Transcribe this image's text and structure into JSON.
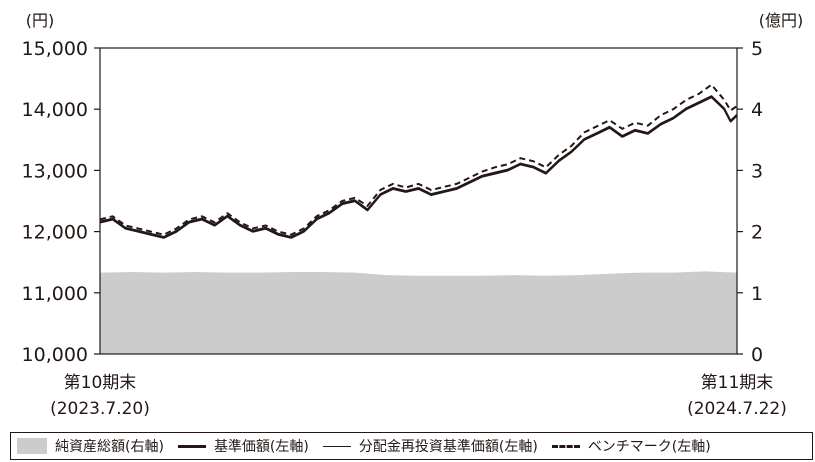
{
  "chart_data": {
    "type": "line",
    "left_axis_unit": "(円)",
    "right_axis_unit": "(億円)",
    "y_left": {
      "min": 10000,
      "max": 15000,
      "ticks": [
        "10,000",
        "11,000",
        "12,000",
        "13,000",
        "14,000",
        "15,000"
      ]
    },
    "y_right": {
      "min": 0,
      "max": 5,
      "ticks": [
        "0",
        "1",
        "2",
        "3",
        "4",
        "5"
      ]
    },
    "x_start": {
      "label": "第10期末",
      "date": "(2023.7.20)"
    },
    "x_end": {
      "label": "第11期末",
      "date": "(2024.7.22)"
    },
    "grid": false,
    "legend_position": "bottom",
    "series": [
      {
        "name": "純資産総額(右軸)",
        "kind": "area",
        "axis": "right",
        "color": "#cccccc",
        "x": [
          0,
          0.05,
          0.1,
          0.15,
          0.2,
          0.25,
          0.3,
          0.35,
          0.4,
          0.45,
          0.5,
          0.55,
          0.6,
          0.65,
          0.7,
          0.75,
          0.8,
          0.85,
          0.9,
          0.95,
          1
        ],
        "values": [
          1.33,
          1.34,
          1.33,
          1.34,
          1.33,
          1.33,
          1.34,
          1.34,
          1.33,
          1.29,
          1.28,
          1.28,
          1.28,
          1.29,
          1.28,
          1.29,
          1.31,
          1.33,
          1.33,
          1.35,
          1.33
        ]
      },
      {
        "name": "基準価額(左軸)",
        "kind": "line",
        "style": "solid-thick",
        "axis": "left",
        "color": "#231815",
        "x": [
          0,
          0.02,
          0.04,
          0.06,
          0.08,
          0.1,
          0.12,
          0.14,
          0.16,
          0.18,
          0.2,
          0.22,
          0.24,
          0.26,
          0.28,
          0.3,
          0.32,
          0.34,
          0.36,
          0.38,
          0.4,
          0.42,
          0.44,
          0.46,
          0.48,
          0.5,
          0.52,
          0.54,
          0.56,
          0.58,
          0.6,
          0.62,
          0.64,
          0.66,
          0.68,
          0.7,
          0.72,
          0.74,
          0.76,
          0.78,
          0.8,
          0.82,
          0.84,
          0.86,
          0.88,
          0.9,
          0.92,
          0.94,
          0.96,
          0.98,
          0.99,
          1
        ],
        "values": [
          12150,
          12200,
          12050,
          12000,
          11950,
          11900,
          12000,
          12150,
          12200,
          12100,
          12250,
          12100,
          12000,
          12050,
          11950,
          11900,
          12000,
          12200,
          12300,
          12450,
          12500,
          12350,
          12600,
          12700,
          12650,
          12700,
          12600,
          12650,
          12700,
          12800,
          12900,
          12950,
          13000,
          13100,
          13050,
          12950,
          13150,
          13300,
          13500,
          13600,
          13700,
          13550,
          13650,
          13600,
          13750,
          13850,
          14000,
          14100,
          14200,
          14000,
          13800,
          13900
        ]
      },
      {
        "name": "分配金再投資基準価額(左軸)",
        "kind": "line",
        "style": "solid-thin",
        "axis": "left",
        "color": "#231815",
        "x": [
          0,
          0.02,
          0.04,
          0.06,
          0.08,
          0.1,
          0.12,
          0.14,
          0.16,
          0.18,
          0.2,
          0.22,
          0.24,
          0.26,
          0.28,
          0.3,
          0.32,
          0.34,
          0.36,
          0.38,
          0.4,
          0.42,
          0.44,
          0.46,
          0.48,
          0.5,
          0.52,
          0.54,
          0.56,
          0.58,
          0.6,
          0.62,
          0.64,
          0.66,
          0.68,
          0.7,
          0.72,
          0.74,
          0.76,
          0.78,
          0.8,
          0.82,
          0.84,
          0.86,
          0.88,
          0.9,
          0.92,
          0.94,
          0.96,
          0.98,
          0.99,
          1
        ],
        "values": [
          12170,
          12220,
          12070,
          12020,
          11970,
          11920,
          12020,
          12170,
          12220,
          12120,
          12270,
          12120,
          12020,
          12070,
          11970,
          11920,
          12020,
          12220,
          12320,
          12470,
          12520,
          12370,
          12620,
          12720,
          12670,
          12720,
          12620,
          12670,
          12720,
          12820,
          12920,
          12970,
          13020,
          13120,
          13070,
          12970,
          13170,
          13320,
          13520,
          13620,
          13720,
          13570,
          13670,
          13620,
          13770,
          13870,
          14020,
          14120,
          14220,
          14020,
          13820,
          13920
        ]
      },
      {
        "name": "ベンチマーク(左軸)",
        "kind": "line",
        "style": "dashed",
        "axis": "left",
        "color": "#231815",
        "x": [
          0,
          0.02,
          0.04,
          0.06,
          0.08,
          0.1,
          0.12,
          0.14,
          0.16,
          0.18,
          0.2,
          0.22,
          0.24,
          0.26,
          0.28,
          0.3,
          0.32,
          0.34,
          0.36,
          0.38,
          0.4,
          0.42,
          0.44,
          0.46,
          0.48,
          0.5,
          0.52,
          0.54,
          0.56,
          0.58,
          0.6,
          0.62,
          0.64,
          0.66,
          0.68,
          0.7,
          0.72,
          0.74,
          0.76,
          0.78,
          0.8,
          0.82,
          0.84,
          0.86,
          0.88,
          0.9,
          0.92,
          0.94,
          0.96,
          0.98,
          0.99,
          1
        ],
        "values": [
          12200,
          12250,
          12100,
          12050,
          12000,
          11950,
          12050,
          12200,
          12250,
          12150,
          12300,
          12150,
          12050,
          12100,
          12000,
          11950,
          12050,
          12250,
          12350,
          12500,
          12550,
          12420,
          12680,
          12780,
          12720,
          12780,
          12680,
          12730,
          12780,
          12880,
          12980,
          13050,
          13100,
          13200,
          13150,
          13050,
          13250,
          13400,
          13620,
          13720,
          13820,
          13680,
          13780,
          13730,
          13900,
          14000,
          14150,
          14250,
          14400,
          14150,
          13980,
          14050
        ]
      }
    ]
  }
}
